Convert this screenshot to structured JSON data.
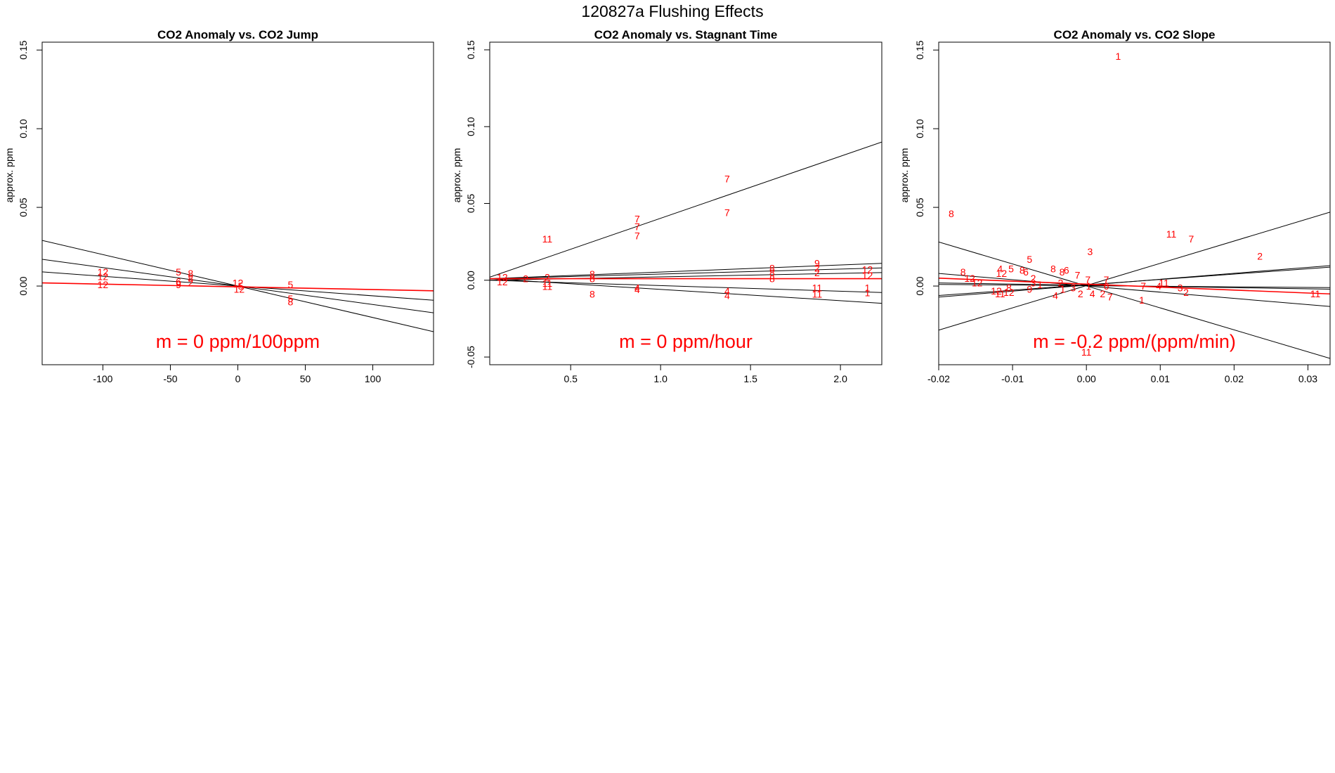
{
  "figure_title": "120827a   Flushing Effects",
  "chart_data": [
    {
      "type": "scatter",
      "title": "CO2 Anomaly vs. CO2 Jump",
      "xlabel": "",
      "ylabel": "approx. ppm",
      "xlim": [
        -145,
        145
      ],
      "ylim": [
        -0.05,
        0.155
      ],
      "xticks": [
        -100,
        -50,
        0,
        50,
        100
      ],
      "xtick_labels": [
        "-100",
        "-50",
        "0",
        "50",
        "100"
      ],
      "yticks": [
        0.0,
        0.05,
        0.1,
        0.15
      ],
      "ytick_labels": [
        "0.00",
        "0.05",
        "0.10",
        "0.15"
      ],
      "annotation": "m = 0 ppm/100ppm",
      "fit_lines": [
        {
          "x": [
            -145,
            145
          ],
          "y": [
            0.029,
            -0.029
          ],
          "color": "#000000"
        },
        {
          "x": [
            -145,
            145
          ],
          "y": [
            0.017,
            -0.017
          ],
          "color": "#000000"
        },
        {
          "x": [
            -145,
            145
          ],
          "y": [
            0.009,
            -0.009
          ],
          "color": "#000000"
        },
        {
          "x": [
            -145,
            145
          ],
          "y": [
            0.002,
            -0.003
          ],
          "color": "#ff0000"
        }
      ],
      "points": [
        {
          "label": "12",
          "x": -100,
          "y": 0.009
        },
        {
          "label": "12",
          "x": -100,
          "y": 0.006
        },
        {
          "label": "12",
          "x": -100,
          "y": 0.001
        },
        {
          "label": "5",
          "x": -44,
          "y": 0.009
        },
        {
          "label": "8",
          "x": -35,
          "y": 0.008
        },
        {
          "label": "8",
          "x": -35,
          "y": 0.005
        },
        {
          "label": "6",
          "x": -44,
          "y": 0.003
        },
        {
          "label": "2",
          "x": -35,
          "y": 0.002
        },
        {
          "label": "9",
          "x": -44,
          "y": 0.001
        },
        {
          "label": "12",
          "x": 0,
          "y": 0.002
        },
        {
          "label": "12",
          "x": 1,
          "y": -0.002
        },
        {
          "label": "5",
          "x": 2,
          "y": 0.0
        },
        {
          "label": "5",
          "x": 39,
          "y": 0.001
        },
        {
          "label": "5",
          "x": 39,
          "y": -0.008
        },
        {
          "label": "8",
          "x": 39,
          "y": -0.01
        }
      ]
    },
    {
      "type": "scatter",
      "title": "CO2 Anomaly vs. Stagnant Time",
      "xlabel": "",
      "ylabel": "approx. ppm",
      "xlim": [
        0.05,
        2.23
      ],
      "ylim": [
        -0.055,
        0.155
      ],
      "xticks": [
        0.5,
        1.0,
        1.5,
        2.0
      ],
      "xtick_labels": [
        "0.5",
        "1.0",
        "1.5",
        "2.0"
      ],
      "yticks": [
        -0.05,
        0.0,
        0.05,
        0.1,
        0.15
      ],
      "ytick_labels": [
        "-0.05",
        "0.00",
        "0.05",
        "0.10",
        "0.15"
      ],
      "annotation": "m = 0 ppm/hour",
      "fit_lines": [
        {
          "x": [
            0.05,
            2.23
          ],
          "y": [
            0.002,
            0.09
          ],
          "color": "#000000"
        },
        {
          "x": [
            0.05,
            2.23
          ],
          "y": [
            0.001,
            0.011
          ],
          "color": "#000000"
        },
        {
          "x": [
            0.05,
            2.23
          ],
          "y": [
            0.001,
            0.008
          ],
          "color": "#000000"
        },
        {
          "x": [
            0.05,
            2.23
          ],
          "y": [
            0.0,
            0.005
          ],
          "color": "#000000"
        },
        {
          "x": [
            0.05,
            2.23
          ],
          "y": [
            0.0,
            -0.008
          ],
          "color": "#000000"
        },
        {
          "x": [
            0.05,
            2.23
          ],
          "y": [
            0.001,
            -0.015
          ],
          "color": "#000000"
        },
        {
          "x": [
            0.05,
            2.23
          ],
          "y": [
            0.001,
            0.001
          ],
          "color": "#ff0000"
        }
      ],
      "points": [
        {
          "label": "11",
          "x": 0.37,
          "y": 0.027
        },
        {
          "label": "7",
          "x": 0.87,
          "y": 0.04
        },
        {
          "label": "7",
          "x": 0.87,
          "y": 0.035
        },
        {
          "label": "7",
          "x": 0.87,
          "y": 0.029
        },
        {
          "label": "7",
          "x": 1.37,
          "y": 0.066
        },
        {
          "label": "7",
          "x": 1.37,
          "y": 0.044
        },
        {
          "label": "12",
          "x": 0.12,
          "y": 0.002
        },
        {
          "label": "12",
          "x": 0.12,
          "y": -0.001
        },
        {
          "label": "2",
          "x": 0.25,
          "y": 0.001
        },
        {
          "label": "2",
          "x": 0.37,
          "y": 0.002
        },
        {
          "label": "11",
          "x": 0.37,
          "y": -0.002
        },
        {
          "label": "11",
          "x": 0.37,
          "y": -0.004
        },
        {
          "label": "8",
          "x": 0.62,
          "y": 0.004
        },
        {
          "label": "8",
          "x": 0.62,
          "y": 0.001
        },
        {
          "label": "8",
          "x": 0.62,
          "y": -0.009
        },
        {
          "label": "4",
          "x": 0.87,
          "y": -0.005
        },
        {
          "label": "4",
          "x": 0.87,
          "y": -0.006
        },
        {
          "label": "4",
          "x": 1.37,
          "y": -0.007
        },
        {
          "label": "4",
          "x": 1.37,
          "y": -0.01
        },
        {
          "label": "8",
          "x": 1.62,
          "y": 0.008
        },
        {
          "label": "8",
          "x": 1.62,
          "y": 0.005
        },
        {
          "label": "8",
          "x": 1.62,
          "y": 0.001
        },
        {
          "label": "9",
          "x": 1.87,
          "y": 0.011
        },
        {
          "label": "2",
          "x": 1.87,
          "y": 0.008
        },
        {
          "label": "2",
          "x": 1.87,
          "y": 0.005
        },
        {
          "label": "11",
          "x": 1.87,
          "y": -0.005
        },
        {
          "label": "11",
          "x": 1.87,
          "y": -0.009
        },
        {
          "label": "12",
          "x": 2.15,
          "y": 0.007
        },
        {
          "label": "12",
          "x": 2.15,
          "y": 0.003
        },
        {
          "label": "1",
          "x": 2.15,
          "y": -0.005
        },
        {
          "label": "1",
          "x": 2.15,
          "y": -0.008
        }
      ]
    },
    {
      "type": "scatter",
      "title": "CO2 Anomaly vs. CO2 Slope",
      "xlabel": "",
      "ylabel": "approx. ppm",
      "xlim": [
        -0.02,
        0.033
      ],
      "ylim": [
        -0.05,
        0.155
      ],
      "xticks": [
        -0.02,
        -0.01,
        0.0,
        0.01,
        0.02,
        0.03
      ],
      "xtick_labels": [
        "-0.02",
        "-0.01",
        "0.00",
        "0.01",
        "0.02",
        "0.03"
      ],
      "yticks": [
        0.0,
        0.05,
        0.1,
        0.15
      ],
      "ytick_labels": [
        "0.00",
        "0.05",
        "0.10",
        "0.15"
      ],
      "annotation": "m = -0.2 ppm/(ppm/min)",
      "fit_lines": [
        {
          "x": [
            -0.02,
            0.033
          ],
          "y": [
            -0.028,
            0.047
          ],
          "color": "#000000"
        },
        {
          "x": [
            -0.02,
            0.033
          ],
          "y": [
            0.028,
            -0.046
          ],
          "color": "#000000"
        },
        {
          "x": [
            -0.02,
            0.033
          ],
          "y": [
            -0.007,
            0.013
          ],
          "color": "#000000"
        },
        {
          "x": [
            -0.02,
            0.033
          ],
          "y": [
            -0.006,
            0.012
          ],
          "color": "#000000"
        },
        {
          "x": [
            -0.02,
            0.033
          ],
          "y": [
            0.008,
            -0.013
          ],
          "color": "#000000"
        },
        {
          "x": [
            -0.02,
            0.033
          ],
          "y": [
            0.002,
            -0.002
          ],
          "color": "#000000"
        },
        {
          "x": [
            -0.02,
            0.033
          ],
          "y": [
            0.001,
            -0.001
          ],
          "color": "#000000"
        },
        {
          "x": [
            -0.02,
            0.033
          ],
          "y": [
            0.005,
            -0.005
          ],
          "color": "#ff0000"
        }
      ],
      "points": [
        {
          "label": "1",
          "x": 0.0043,
          "y": 0.146
        },
        {
          "label": "8",
          "x": -0.0183,
          "y": 0.046
        },
        {
          "label": "3",
          "x": 0.0005,
          "y": 0.022
        },
        {
          "label": "11",
          "x": 0.0115,
          "y": 0.033
        },
        {
          "label": "7",
          "x": 0.0142,
          "y": 0.03
        },
        {
          "label": "2",
          "x": 0.0235,
          "y": 0.019
        },
        {
          "label": "5",
          "x": -0.0077,
          "y": 0.017
        },
        {
          "label": "8",
          "x": -0.0045,
          "y": 0.011
        },
        {
          "label": "8",
          "x": -0.0033,
          "y": 0.009
        },
        {
          "label": "6",
          "x": -0.0027,
          "y": 0.01
        },
        {
          "label": "4",
          "x": -0.0117,
          "y": 0.011
        },
        {
          "label": "5",
          "x": -0.0102,
          "y": 0.011
        },
        {
          "label": "8",
          "x": -0.0087,
          "y": 0.01
        },
        {
          "label": "6",
          "x": -0.0082,
          "y": 0.009
        },
        {
          "label": "8",
          "x": -0.0167,
          "y": 0.009
        },
        {
          "label": "12",
          "x": -0.0158,
          "y": 0.005
        },
        {
          "label": "12",
          "x": -0.0148,
          "y": 0.002
        },
        {
          "label": "12",
          "x": -0.0115,
          "y": 0.008
        },
        {
          "label": "7",
          "x": -0.0012,
          "y": 0.007
        },
        {
          "label": "7",
          "x": 0.0002,
          "y": 0.004
        },
        {
          "label": "7",
          "x": 0.0027,
          "y": 0.004
        },
        {
          "label": "2",
          "x": -0.0072,
          "y": 0.005
        },
        {
          "label": "3",
          "x": -0.0072,
          "y": 0.002
        },
        {
          "label": "1",
          "x": -0.0063,
          "y": 0.001
        },
        {
          "label": "12",
          "x": -0.0122,
          "y": -0.003
        },
        {
          "label": "12",
          "x": -0.0105,
          "y": -0.004
        },
        {
          "label": "11",
          "x": -0.0117,
          "y": -0.005
        },
        {
          "label": "8",
          "x": -0.0105,
          "y": -0.001
        },
        {
          "label": "9",
          "x": -0.0077,
          "y": -0.002
        },
        {
          "label": "4",
          "x": -0.0042,
          "y": -0.006
        },
        {
          "label": "2",
          "x": -0.0035,
          "y": 0.002
        },
        {
          "label": "1",
          "x": -0.0032,
          "y": -0.002
        },
        {
          "label": "3",
          "x": -0.0018,
          "y": -0.001
        },
        {
          "label": "1",
          "x": 0.0003,
          "y": 0.0
        },
        {
          "label": "2",
          "x": -0.0008,
          "y": -0.005
        },
        {
          "label": "4",
          "x": 0.0008,
          "y": -0.005
        },
        {
          "label": "2",
          "x": 0.0022,
          "y": -0.005
        },
        {
          "label": "6",
          "x": 0.0027,
          "y": 0.0
        },
        {
          "label": "7",
          "x": 0.0032,
          "y": -0.007
        },
        {
          "label": "1",
          "x": 0.0075,
          "y": -0.009
        },
        {
          "label": "7",
          "x": 0.0077,
          "y": 0.0
        },
        {
          "label": "4",
          "x": 0.0098,
          "y": 0.0
        },
        {
          "label": "11",
          "x": 0.0105,
          "y": 0.002
        },
        {
          "label": "3",
          "x": 0.0127,
          "y": -0.001
        },
        {
          "label": "2",
          "x": 0.0135,
          "y": -0.004
        },
        {
          "label": "11",
          "x": 0.031,
          "y": -0.005
        },
        {
          "label": "11",
          "x": 0.0,
          "y": -0.042
        }
      ]
    }
  ]
}
